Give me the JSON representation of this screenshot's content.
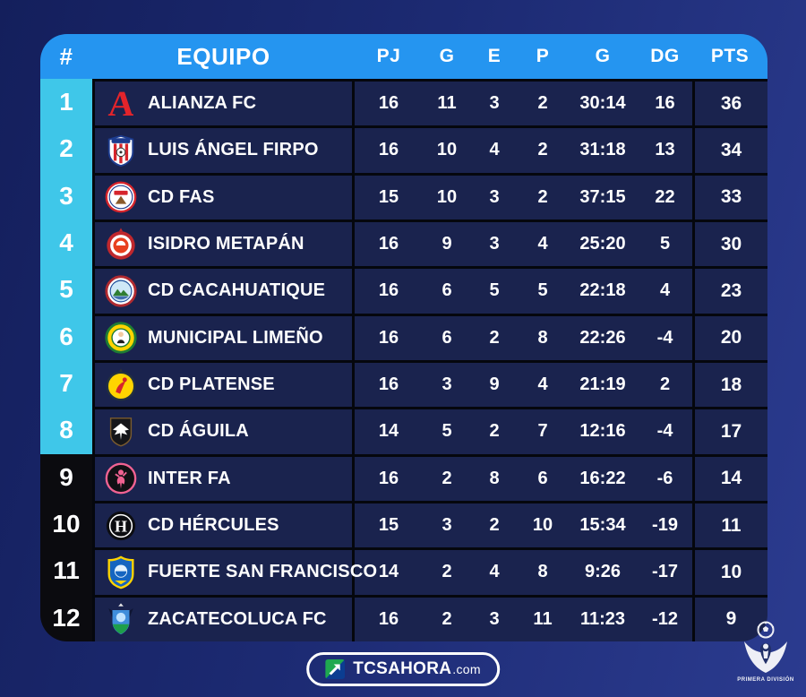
{
  "header": {
    "labels": [
      "#",
      "EQUIPO",
      "PJ",
      "G",
      "E",
      "P",
      "G",
      "DG",
      "PTS"
    ]
  },
  "rows": [
    {
      "pos": "1",
      "team": "ALIANZA FC",
      "logo": "alianza-fc",
      "zone": "cyan",
      "pj": "16",
      "g": "11",
      "e": "3",
      "p": "2",
      "goals": "30:14",
      "dg": "16",
      "pts": "36"
    },
    {
      "pos": "2",
      "team": "LUIS ÁNGEL FIRPO",
      "logo": "luis-angel-firpo",
      "zone": "cyan",
      "pj": "16",
      "g": "10",
      "e": "4",
      "p": "2",
      "goals": "31:18",
      "dg": "13",
      "pts": "34"
    },
    {
      "pos": "3",
      "team": "CD FAS",
      "logo": "cd-fas",
      "zone": "cyan",
      "pj": "15",
      "g": "10",
      "e": "3",
      "p": "2",
      "goals": "37:15",
      "dg": "22",
      "pts": "33"
    },
    {
      "pos": "4",
      "team": "ISIDRO METAPÁN",
      "logo": "isidro-metapan",
      "zone": "cyan",
      "pj": "16",
      "g": "9",
      "e": "3",
      "p": "4",
      "goals": "25:20",
      "dg": "5",
      "pts": "30"
    },
    {
      "pos": "5",
      "team": "CD CACAHUATIQUE",
      "logo": "cd-cacahuatique",
      "zone": "cyan",
      "pj": "16",
      "g": "6",
      "e": "5",
      "p": "5",
      "goals": "22:18",
      "dg": "4",
      "pts": "23"
    },
    {
      "pos": "6",
      "team": "MUNICIPAL LIMEÑO",
      "logo": "municipal-limeno",
      "zone": "cyan",
      "pj": "16",
      "g": "6",
      "e": "2",
      "p": "8",
      "goals": "22:26",
      "dg": "-4",
      "pts": "20"
    },
    {
      "pos": "7",
      "team": "CD PLATENSE",
      "logo": "cd-platense",
      "zone": "cyan",
      "pj": "16",
      "g": "3",
      "e": "9",
      "p": "4",
      "goals": "21:19",
      "dg": "2",
      "pts": "18"
    },
    {
      "pos": "8",
      "team": "CD ÁGUILA",
      "logo": "cd-aguila",
      "zone": "cyan",
      "pj": "14",
      "g": "5",
      "e": "2",
      "p": "7",
      "goals": "12:16",
      "dg": "-4",
      "pts": "17"
    },
    {
      "pos": "9",
      "team": "INTER FA",
      "logo": "inter-fa",
      "zone": "black",
      "pj": "16",
      "g": "2",
      "e": "8",
      "p": "6",
      "goals": "16:22",
      "dg": "-6",
      "pts": "14"
    },
    {
      "pos": "10",
      "team": "CD HÉRCULES",
      "logo": "cd-hercules",
      "zone": "black",
      "pj": "15",
      "g": "3",
      "e": "2",
      "p": "10",
      "goals": "15:34",
      "dg": "-19",
      "pts": "11"
    },
    {
      "pos": "11",
      "team": "FUERTE SAN FRANCISCO",
      "logo": "fuerte-san-francisco",
      "zone": "black",
      "pj": "14",
      "g": "2",
      "e": "4",
      "p": "8",
      "goals": "9:26",
      "dg": "-17",
      "pts": "10"
    },
    {
      "pos": "12",
      "team": "ZACATECOLUCA FC",
      "logo": "zacatecoluca-fc",
      "zone": "black",
      "pj": "16",
      "g": "2",
      "e": "3",
      "p": "11",
      "goals": "11:23",
      "dg": "-12",
      "pts": "9"
    }
  ],
  "footer": {
    "brand": "TCSAHORA",
    "suffix": ".com",
    "icon": "tcs-arrow-icon"
  },
  "badge": {
    "label": "PRIMERA DIVISIÓN",
    "icon": "primera-division-emblem"
  },
  "colors": {
    "header_blue": "#2595f0",
    "zone_cyan": "#3fc7e9",
    "zone_black": "#0b0b0f",
    "row_navy": "#1a234e",
    "separator": "#05070d",
    "background_start": "#141f5c",
    "background_end": "#2b3b8f",
    "alianza_red": "#e3242b"
  },
  "chart_data": {
    "type": "table",
    "columns": [
      "#",
      "EQUIPO",
      "PJ",
      "G",
      "E",
      "P",
      "G",
      "DG",
      "PTS"
    ],
    "rows": [
      [
        1,
        "ALIANZA FC",
        16,
        11,
        3,
        2,
        "30:14",
        16,
        36
      ],
      [
        2,
        "LUIS ÁNGEL FIRPO",
        16,
        10,
        4,
        2,
        "31:18",
        13,
        34
      ],
      [
        3,
        "CD FAS",
        15,
        10,
        3,
        2,
        "37:15",
        22,
        33
      ],
      [
        4,
        "ISIDRO METAPÁN",
        16,
        9,
        3,
        4,
        "25:20",
        5,
        30
      ],
      [
        5,
        "CD CACAHUATIQUE",
        16,
        6,
        5,
        5,
        "22:18",
        4,
        23
      ],
      [
        6,
        "MUNICIPAL LIMEÑO",
        16,
        6,
        2,
        8,
        "22:26",
        -4,
        20
      ],
      [
        7,
        "CD PLATENSE",
        16,
        3,
        9,
        4,
        "21:19",
        2,
        18
      ],
      [
        8,
        "CD ÁGUILA",
        14,
        5,
        2,
        7,
        "12:16",
        -4,
        17
      ],
      [
        9,
        "INTER FA",
        16,
        2,
        8,
        6,
        "16:22",
        -6,
        14
      ],
      [
        10,
        "CD HÉRCULES",
        15,
        3,
        2,
        10,
        "15:34",
        -19,
        11
      ],
      [
        11,
        "FUERTE SAN FRANCISCO",
        14,
        2,
        4,
        8,
        "9:26",
        -17,
        10
      ],
      [
        12,
        "ZACATECOLUCA FC",
        16,
        2,
        3,
        11,
        "11:23",
        -12,
        9
      ]
    ],
    "legend": "cyan rows = positions 1-8, black rows = positions 9-12",
    "branding": [
      "TCSAHORA.com",
      "PRIMERA DIVISIÓN"
    ]
  }
}
